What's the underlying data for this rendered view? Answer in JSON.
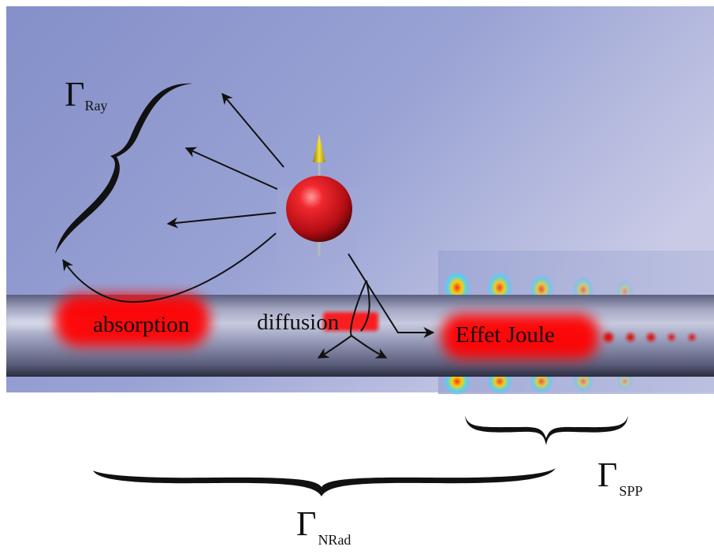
{
  "labels": {
    "gamma_ray": {
      "symbol": "Γ",
      "subscript": "Ray"
    },
    "gamma_spp": {
      "symbol": "Γ",
      "subscript": "SPP"
    },
    "gamma_nrad": {
      "symbol": "Γ",
      "subscript": "NRad"
    },
    "absorption": "absorption",
    "diffusion": "diffusion",
    "effet_joule": "Effet Joule"
  },
  "colors": {
    "background_blue": "#8e98cd",
    "wire": "#9094b2",
    "hotspot_red": "#ff0000",
    "dipole_sphere": "#d9141c",
    "dipole_arrow": "#e8d21a",
    "ink": "#111111"
  },
  "icons": {
    "emitter": "dipole-sphere-icon",
    "spp_field": "surface-plasmon-field-icon"
  }
}
